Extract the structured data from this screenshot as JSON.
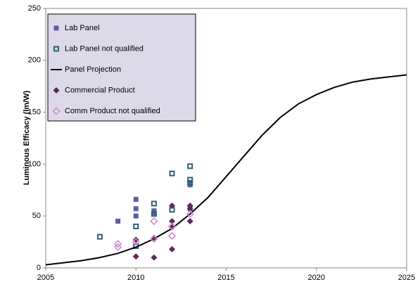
{
  "chart_data": {
    "type": "scatter",
    "ylabel": "Luminous Efficacy (lm/W)",
    "xlim": [
      2005,
      2025
    ],
    "xticks": [
      2005,
      2010,
      2015,
      2020,
      2025
    ],
    "ylim": [
      0,
      250
    ],
    "yticks": [
      0,
      50,
      100,
      150,
      200,
      250
    ],
    "grid": false,
    "legend": "upper left",
    "series": [
      {
        "name": "Lab Panel",
        "color": "#5b5ea6",
        "marker": "square",
        "filled": true,
        "x": [
          2009,
          2010,
          2010,
          2010,
          2011,
          2011,
          2013,
          2013
        ],
        "values": [
          45,
          66,
          57,
          50,
          55,
          53,
          80,
          57
        ]
      },
      {
        "name": "Lab Panel not qualified",
        "color": "#2f5f72",
        "marker": "square",
        "filled": false,
        "x": [
          2008,
          2010,
          2010,
          2011,
          2011,
          2012,
          2012,
          2013,
          2013,
          2013
        ],
        "values": [
          30,
          40,
          21,
          62,
          52,
          91,
          56,
          98,
          85,
          82
        ]
      },
      {
        "name": "Panel Projection",
        "color": "#000000",
        "marker": "line",
        "x": [
          2005,
          2006,
          2007,
          2008,
          2009,
          2010,
          2011,
          2012,
          2013,
          2014,
          2015,
          2016,
          2017,
          2018,
          2019,
          2020,
          2021,
          2022,
          2023,
          2024,
          2025
        ],
        "values": [
          3,
          5,
          7,
          10,
          14,
          20,
          28,
          38,
          52,
          68,
          88,
          108,
          128,
          145,
          158,
          167,
          174,
          179,
          182,
          184,
          186
        ]
      },
      {
        "name": "Commercial Product",
        "color": "#5c2a5a",
        "marker": "diamond",
        "filled": true,
        "x": [
          2010,
          2010,
          2011,
          2011,
          2012,
          2012,
          2012,
          2012,
          2013,
          2013,
          2013
        ],
        "values": [
          27,
          11,
          29,
          10,
          60,
          45,
          39,
          18,
          60,
          57,
          45
        ]
      },
      {
        "name": "Comm Product not qualified",
        "color": "#cc88cc",
        "marker": "diamond",
        "filled": false,
        "x": [
          2009,
          2009,
          2010,
          2011,
          2011,
          2012,
          2012,
          2013
        ],
        "values": [
          23,
          20,
          25,
          45,
          28,
          40,
          31,
          52
        ]
      }
    ]
  }
}
